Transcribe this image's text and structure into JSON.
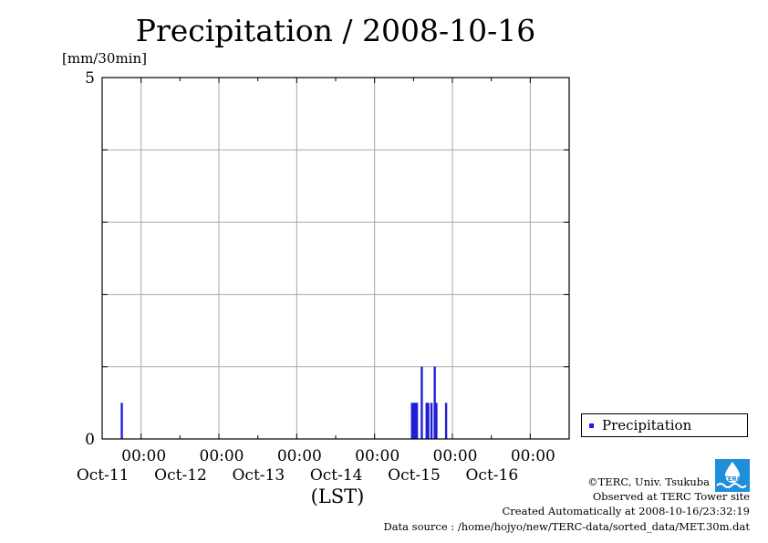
{
  "title": "Precipitation / 2008-10-16",
  "unit": "[mm/30min]",
  "xlabel": "(LST)",
  "legend": {
    "label": "Precipitation",
    "color": "#1f1fd6"
  },
  "credits": {
    "line1": "©TERC, Univ. Tsukuba",
    "line2": "Observed at TERC Tower site",
    "line3": "Created Automatically at 2008-10-16/23:32:19",
    "line4": "Data source : /home/hojyo/new/TERC-data/sorted_data/MET.30m.dat"
  },
  "logo": {
    "text": "TERC",
    "color": "#1e8fd8"
  },
  "chart_data": {
    "type": "bar",
    "title": "Precipitation / 2008-10-16",
    "ylabel": "[mm/30min]",
    "xlabel": "(LST)",
    "ylim": [
      0,
      5
    ],
    "yticks": [
      "0",
      "5"
    ],
    "xlim": [
      "2008-10-10 12:00",
      "2008-10-16 12:00"
    ],
    "xticks": [
      {
        "time": "00:00",
        "date": "Oct-11",
        "at": "2008-10-11 00:00"
      },
      {
        "time": "00:00",
        "date": "Oct-12",
        "at": "2008-10-12 00:00"
      },
      {
        "time": "00:00",
        "date": "Oct-13",
        "at": "2008-10-13 00:00"
      },
      {
        "time": "00:00",
        "date": "Oct-14",
        "at": "2008-10-14 00:00"
      },
      {
        "time": "00:00",
        "date": "Oct-15",
        "at": "2008-10-15 00:00"
      },
      {
        "time": "00:00",
        "date": "Oct-16",
        "at": "2008-10-16 00:00"
      }
    ],
    "grid": true,
    "legend_position": "right",
    "series": [
      {
        "name": "Precipitation",
        "color": "#1f1fd6",
        "points": [
          {
            "t": "2008-10-10 18:00",
            "v": 0.5
          },
          {
            "t": "2008-10-14 11:30",
            "v": 0.5
          },
          {
            "t": "2008-10-14 12:00",
            "v": 0.5
          },
          {
            "t": "2008-10-14 12:30",
            "v": 0.5
          },
          {
            "t": "2008-10-14 13:00",
            "v": 0.5
          },
          {
            "t": "2008-10-14 14:30",
            "v": 1.0
          },
          {
            "t": "2008-10-14 16:00",
            "v": 0.5
          },
          {
            "t": "2008-10-14 16:30",
            "v": 0.5
          },
          {
            "t": "2008-10-14 17:30",
            "v": 0.5
          },
          {
            "t": "2008-10-14 18:30",
            "v": 1.0
          },
          {
            "t": "2008-10-14 19:00",
            "v": 0.5
          },
          {
            "t": "2008-10-14 22:00",
            "v": 0.5
          }
        ]
      }
    ]
  }
}
